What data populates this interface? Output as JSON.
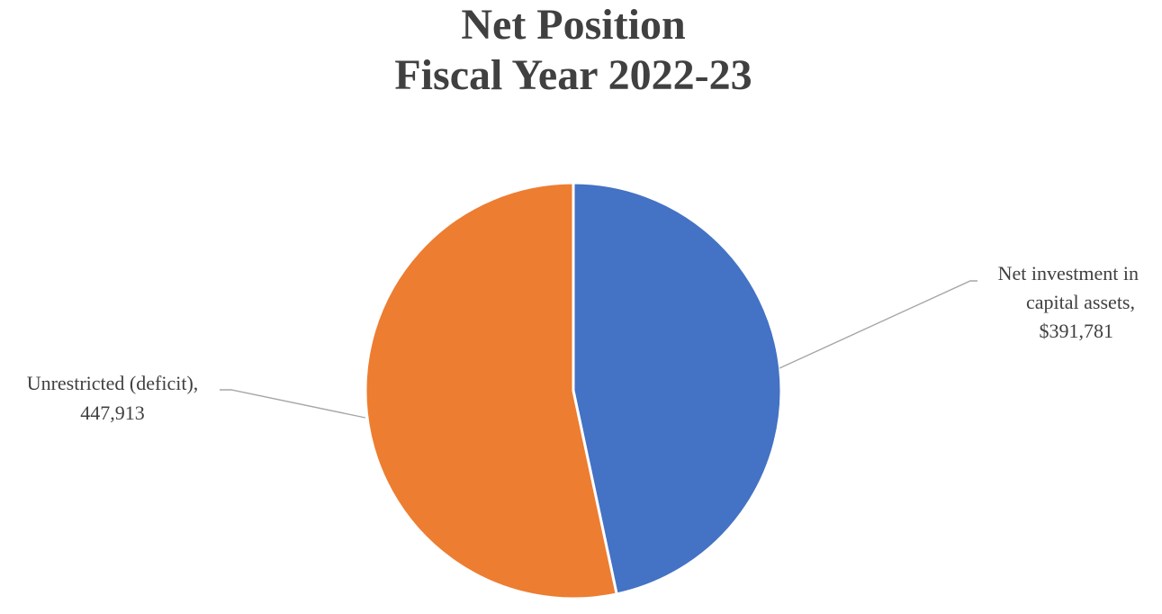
{
  "chart_data": {
    "type": "pie",
    "title": [
      "Net Position",
      "Fiscal Year 2022-23"
    ],
    "slices": [
      {
        "label_lines": [
          "Net investment in",
          "capital assets,",
          "$391,781"
        ],
        "value": 391781,
        "color": "#4472C4"
      },
      {
        "label_lines": [
          "Unrestricted (deficit),",
          "447,913"
        ],
        "value": 447913,
        "color": "#ED7D31"
      }
    ],
    "start_angle_deg": 0,
    "direction": "clockwise",
    "legend": "none"
  }
}
